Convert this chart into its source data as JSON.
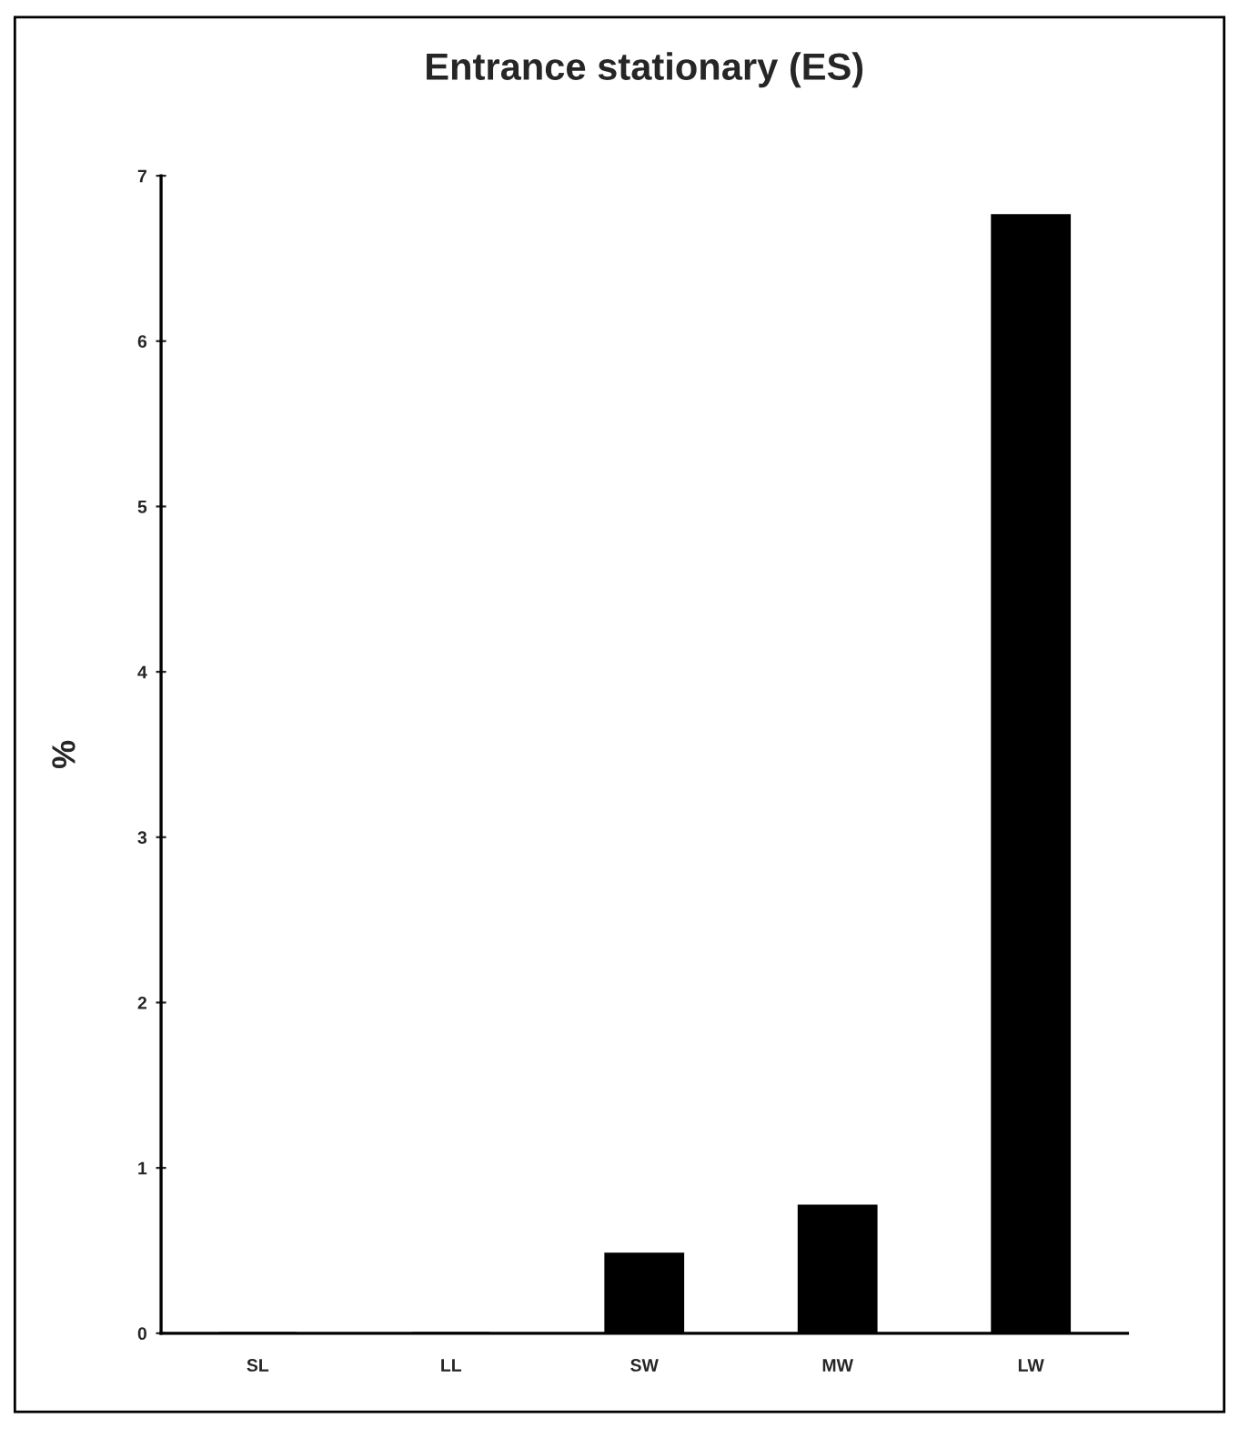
{
  "chart_data": {
    "type": "bar",
    "title": "Entrance stationary (ES)",
    "ylabel": "%",
    "categories": [
      "SL",
      "LL",
      "SW",
      "MW",
      "LW"
    ],
    "values": [
      0,
      0,
      0.48,
      0.77,
      6.76
    ],
    "color": "#000000",
    "ylim": [
      0,
      7
    ],
    "yticks": [
      0,
      1,
      2,
      3,
      4,
      5,
      6,
      7
    ],
    "grid": false
  }
}
